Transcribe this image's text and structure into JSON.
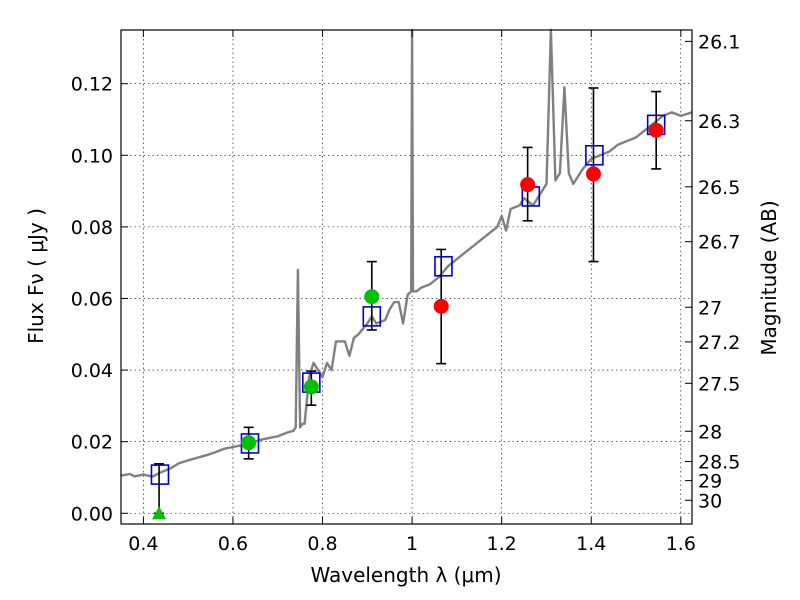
{
  "chart_data": {
    "type": "scatter",
    "xlabel": "Wavelength  λ (μm)",
    "ylabel": "Flux  Fν  ( μJy )",
    "y2label": "Magnitude (AB)",
    "xlim": [
      0.35,
      1.625
    ],
    "ylim": [
      -0.003,
      0.135
    ],
    "grid": true,
    "x_ticks": [
      0.4,
      0.6,
      0.8,
      1.0,
      1.2,
      1.4,
      1.6
    ],
    "x_tick_labels": [
      "0.4",
      "0.6",
      "0.8",
      "1",
      "1.2",
      "1.4",
      "1.6"
    ],
    "y_ticks": [
      0.0,
      0.02,
      0.04,
      0.06,
      0.08,
      0.1,
      0.12
    ],
    "y_tick_labels": [
      "0.00",
      "0.02",
      "0.04",
      "0.06",
      "0.08",
      "0.10",
      "0.12"
    ],
    "mag_ticks": [
      26.1,
      26.3,
      26.5,
      26.7,
      27,
      27.2,
      27.5,
      28,
      28.5,
      29,
      30
    ],
    "mag_tick_labels": [
      "26.1",
      "26.3",
      "26.5",
      "26.7",
      "27",
      "27.2",
      "27.5",
      "28",
      "28.5",
      "29",
      "30"
    ],
    "colors": {
      "model": "#808080",
      "green": "#00c000",
      "red": "#ff0000",
      "blue": "#0000cc",
      "errorbar": "#000000"
    },
    "green_points": [
      {
        "x": 0.635,
        "y": 0.0197,
        "yerr": [
          0.0152,
          0.024
        ]
      },
      {
        "x": 0.775,
        "y": 0.0353,
        "yerr": [
          0.0302,
          0.0397
        ]
      },
      {
        "x": 0.91,
        "y": 0.0605,
        "yerr": [
          0.0512,
          0.0703
        ]
      }
    ],
    "green_upper_limit": {
      "x": 0.435,
      "y": 0.0,
      "yerr": [
        0.0,
        0.0138
      ]
    },
    "red_points": [
      {
        "x": 1.065,
        "y": 0.0578,
        "yerr": [
          0.0418,
          0.0737
        ]
      },
      {
        "x": 1.258,
        "y": 0.0918,
        "yerr": [
          0.0817,
          0.1022
        ]
      },
      {
        "x": 1.405,
        "y": 0.0948,
        "yerr": [
          0.0703,
          0.1188
        ]
      },
      {
        "x": 1.545,
        "y": 0.107,
        "yerr": [
          0.0962,
          0.1178
        ]
      }
    ],
    "model_photometry": [
      {
        "x": 0.437,
        "y": 0.0108
      },
      {
        "x": 0.638,
        "y": 0.0195
      },
      {
        "x": 0.775,
        "y": 0.0365
      },
      {
        "x": 0.91,
        "y": 0.055
      },
      {
        "x": 1.07,
        "y": 0.069
      },
      {
        "x": 1.265,
        "y": 0.0885
      },
      {
        "x": 1.407,
        "y": 0.1
      },
      {
        "x": 1.545,
        "y": 0.1085
      }
    ],
    "model_spectrum": [
      [
        0.35,
        0.0105
      ],
      [
        0.37,
        0.011
      ],
      [
        0.38,
        0.0103
      ],
      [
        0.4,
        0.0108
      ],
      [
        0.42,
        0.0102
      ],
      [
        0.44,
        0.0115
      ],
      [
        0.46,
        0.0125
      ],
      [
        0.48,
        0.014
      ],
      [
        0.5,
        0.0148
      ],
      [
        0.52,
        0.0155
      ],
      [
        0.54,
        0.0162
      ],
      [
        0.56,
        0.017
      ],
      [
        0.58,
        0.018
      ],
      [
        0.6,
        0.0185
      ],
      [
        0.62,
        0.019
      ],
      [
        0.64,
        0.0195
      ],
      [
        0.66,
        0.0205
      ],
      [
        0.68,
        0.021
      ],
      [
        0.7,
        0.0215
      ],
      [
        0.72,
        0.0225
      ],
      [
        0.735,
        0.023
      ],
      [
        0.74,
        0.024
      ],
      [
        0.745,
        0.068
      ],
      [
        0.75,
        0.024
      ],
      [
        0.755,
        0.025
      ],
      [
        0.76,
        0.025
      ],
      [
        0.77,
        0.038
      ],
      [
        0.775,
        0.04
      ],
      [
        0.78,
        0.042
      ],
      [
        0.79,
        0.04
      ],
      [
        0.8,
        0.038
      ],
      [
        0.81,
        0.042
      ],
      [
        0.82,
        0.04
      ],
      [
        0.83,
        0.048
      ],
      [
        0.85,
        0.048
      ],
      [
        0.86,
        0.044
      ],
      [
        0.87,
        0.049
      ],
      [
        0.88,
        0.05
      ],
      [
        0.9,
        0.053
      ],
      [
        0.91,
        0.055
      ],
      [
        0.92,
        0.053
      ],
      [
        0.94,
        0.054
      ],
      [
        0.95,
        0.057
      ],
      [
        0.96,
        0.059
      ],
      [
        0.97,
        0.059
      ],
      [
        0.98,
        0.053
      ],
      [
        0.99,
        0.061
      ],
      [
        0.998,
        0.062
      ],
      [
        1.0,
        0.135
      ],
      [
        1.002,
        0.062
      ],
      [
        1.01,
        0.062
      ],
      [
        1.02,
        0.063
      ],
      [
        1.04,
        0.064
      ],
      [
        1.06,
        0.066
      ],
      [
        1.08,
        0.069
      ],
      [
        1.1,
        0.071
      ],
      [
        1.12,
        0.073
      ],
      [
        1.14,
        0.075
      ],
      [
        1.16,
        0.077
      ],
      [
        1.18,
        0.079
      ],
      [
        1.19,
        0.08
      ],
      [
        1.2,
        0.083
      ],
      [
        1.21,
        0.079
      ],
      [
        1.22,
        0.085
      ],
      [
        1.24,
        0.086
      ],
      [
        1.25,
        0.088
      ],
      [
        1.27,
        0.086
      ],
      [
        1.28,
        0.088
      ],
      [
        1.3,
        0.092
      ],
      [
        1.31,
        0.135
      ],
      [
        1.32,
        0.093
      ],
      [
        1.33,
        0.095
      ],
      [
        1.34,
        0.119
      ],
      [
        1.35,
        0.095
      ],
      [
        1.36,
        0.092
      ],
      [
        1.38,
        0.096
      ],
      [
        1.4,
        0.099
      ],
      [
        1.42,
        0.1
      ],
      [
        1.44,
        0.101
      ],
      [
        1.46,
        0.103
      ],
      [
        1.48,
        0.104
      ],
      [
        1.5,
        0.105
      ],
      [
        1.52,
        0.107
      ],
      [
        1.54,
        0.109
      ],
      [
        1.56,
        0.111
      ],
      [
        1.58,
        0.112
      ],
      [
        1.6,
        0.111
      ],
      [
        1.625,
        0.112
      ]
    ]
  }
}
